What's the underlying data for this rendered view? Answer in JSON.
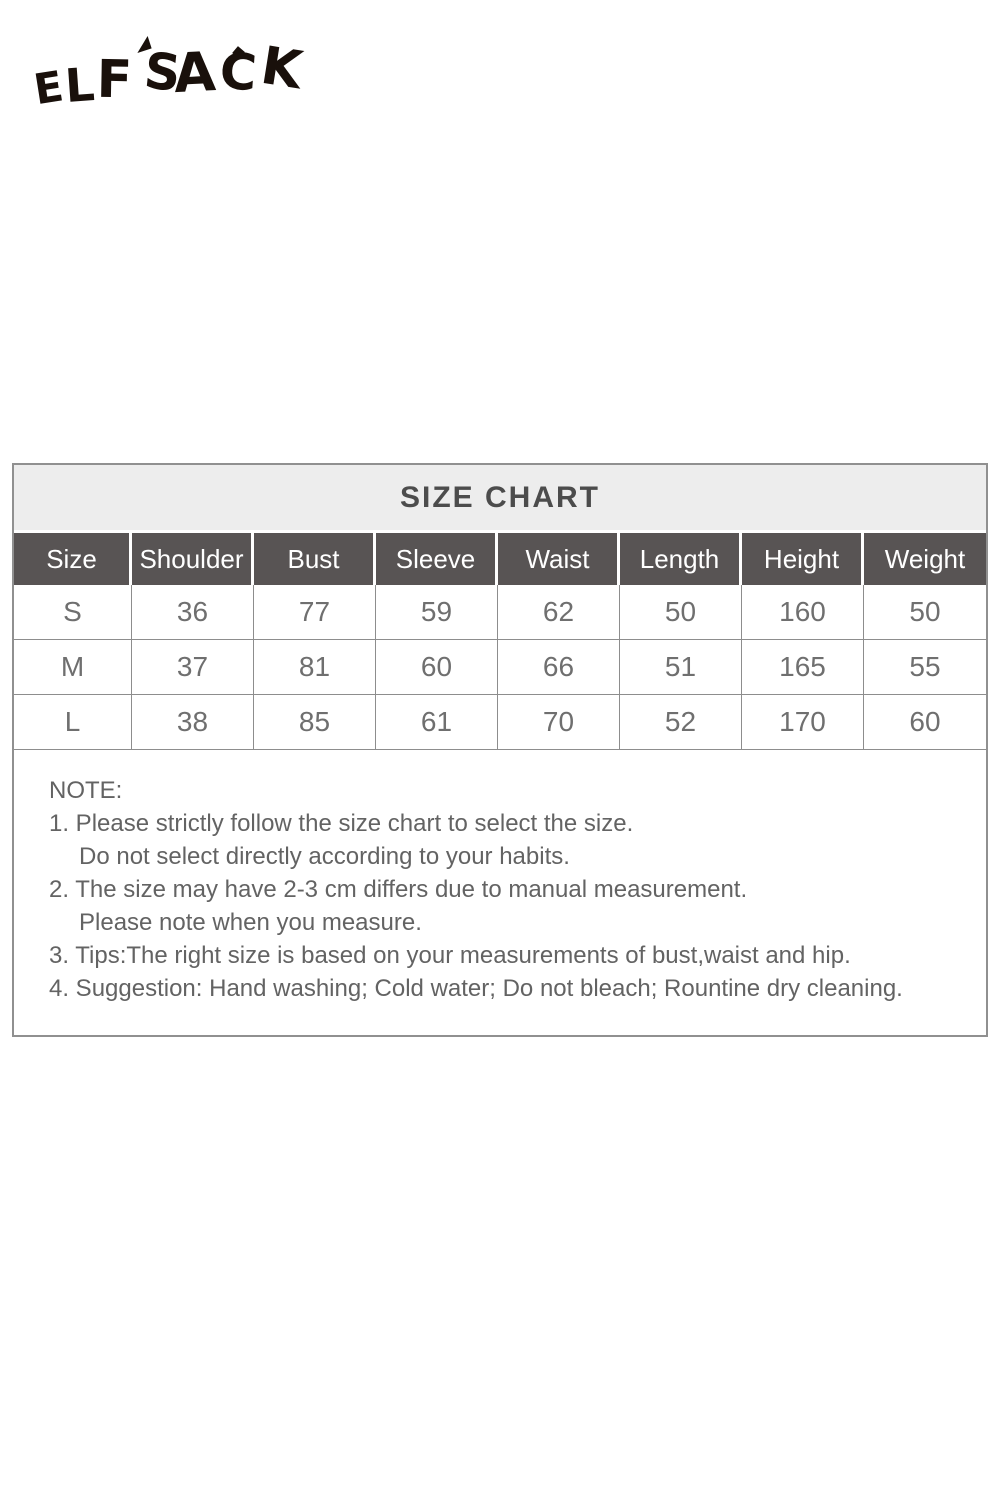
{
  "brand": {
    "logo_text": "ELF SACK"
  },
  "chart_data": {
    "type": "table",
    "title": "SIZE CHART",
    "columns": [
      "Size",
      "Shoulder",
      "Bust",
      "Sleeve",
      "Waist",
      "Length",
      "Height",
      "Weight"
    ],
    "rows": [
      [
        "S",
        36,
        77,
        59,
        62,
        50,
        160,
        50
      ],
      [
        "M",
        37,
        81,
        60,
        66,
        51,
        165,
        55
      ],
      [
        "L",
        38,
        85,
        61,
        70,
        52,
        170,
        60
      ]
    ]
  },
  "notes": {
    "heading": "NOTE:",
    "lines": [
      "1. Please strictly follow the size chart to select the size.",
      "Do not select directly according to your habits.",
      "2. The size may have 2-3 cm differs due to manual measurement.",
      "Please note when you measure.",
      "3. Tips:The right size is based on your measurements of bust,waist and hip.",
      "4. Suggestion: Hand washing; Cold water; Do not bleach; Rountine dry cleaning."
    ]
  },
  "colors": {
    "page_bg": "#ffffff",
    "title_bar_bg": "#ededed",
    "title_text": "#4c4c4c",
    "header_bg": "#585454",
    "header_text": "#ffffff",
    "table_text": "#6f6f6f",
    "note_text": "#636363",
    "border": "#909090",
    "logo": "#19100b"
  }
}
